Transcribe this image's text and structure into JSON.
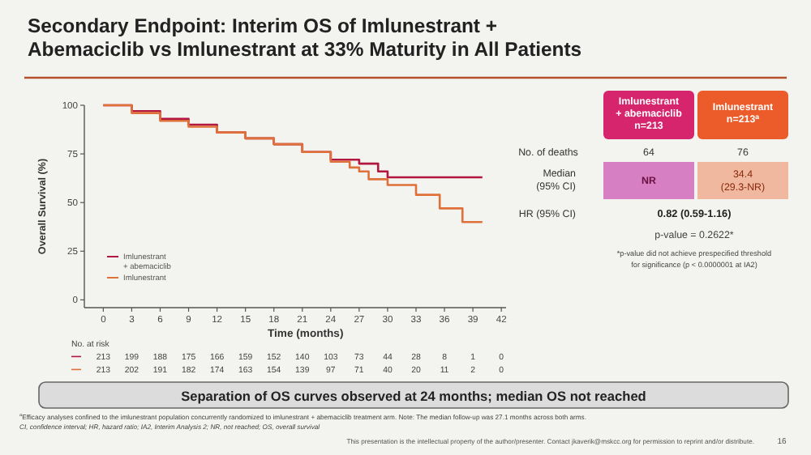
{
  "chart_data": {
    "type": "step",
    "title": "Secondary Endpoint: Interim OS of Imlunestrant +\nAbemaciclib vs Imlunestrant at 33% Maturity in All Patients",
    "xlabel": "Time (months)",
    "ylabel": "Overall Survival (%)",
    "xlim": [
      -2,
      42.5
    ],
    "xticks": [
      0,
      3,
      6,
      9,
      12,
      15,
      18,
      21,
      24,
      27,
      30,
      33,
      36,
      39,
      42
    ],
    "ylim": [
      -4,
      100
    ],
    "yticks": [
      0,
      25,
      50,
      75,
      100
    ],
    "grid": false,
    "legend": "bottom left",
    "line_style": "solid",
    "series": [
      {
        "name": "Imlunestrant\n+ abemaciclib",
        "color": "#b3163f",
        "x": [
          0,
          3,
          6,
          9,
          12,
          15,
          18,
          21,
          24,
          27,
          28.5,
          29,
          30,
          40
        ],
        "values": [
          100,
          97,
          93,
          90,
          86,
          83,
          80,
          76,
          72,
          70,
          70,
          66,
          63,
          63
        ]
      },
      {
        "name": "Imlunestrant",
        "color": "#e0703a",
        "x": [
          0,
          3,
          6,
          9,
          12,
          15,
          18,
          21,
          24,
          26,
          27,
          28,
          30,
          33,
          35.5,
          37.9,
          40
        ],
        "values": [
          100,
          96,
          92,
          89,
          86,
          83,
          80,
          76,
          71,
          68,
          66,
          62,
          59,
          54,
          47,
          40,
          40
        ]
      }
    ],
    "annotations": [
      "Imlunestrant\n+ abemaciclib\nn=213",
      "Imlunestrant\nn=213$^{a}$",
      "No. of deaths",
      "64",
      "76",
      "Median\n(95% CI)",
      "NR",
      "34.4\n(29.3-NR)",
      "HR (95% CI)",
      "0.82 (0.59-1.16)",
      "p-value = 0.2622*",
      "*p-value did not achieve prespecified threshold\nfor significance (p < 0.0000001 at IA2)",
      "No. at risk",
      "213 199 188 175 166 159 152 140 103 73 44 28 8 1 0",
      "213 202 191 182 174 163 154 139 97 71 40 20 11 2 0",
      "Separation of OS curves observed at 24 months; median OS not reached",
      "$^{a}$Efficacy analyses confined to the imlunestrant population concurrently randomized to imlunestrant + abemaciclib treatment arm. Note: The median follow-up was 27.1 months across both arms.",
      "CI, confidence interval; HR, hazard ratio; IA2, Interim Analysis 2; NR, not reached; OS, overall survival",
      "This presentation is the intellectual property of the author/presenter. Contact jkaverik@mskcc.org for permission to reprint and/or distribute.",
      "16"
    ]
  }
}
